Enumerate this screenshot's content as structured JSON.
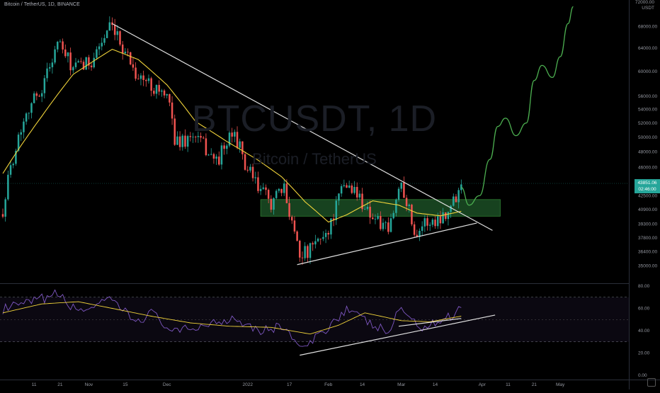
{
  "header": {
    "symbol_line": "Bitcoin / TetherUS, 1D, BINANCE"
  },
  "watermark": {
    "ticker": "BTCUSDT, 1D",
    "name": "Bitcoin / TetherUS"
  },
  "price_axis": {
    "top_label": "72000.00",
    "unit": "USDT"
  },
  "current_price": {
    "price": "43851.06",
    "countdown": "02:46:00"
  },
  "colors": {
    "up": "#26a69a",
    "down": "#ef5350",
    "ema": "#f0d33a",
    "trendline": "#e0e0e0",
    "zone_fill": "#1b4d24",
    "zone_border": "#2e7d32",
    "projection": "#4caf50",
    "rsi_line": "#7e57c2",
    "rsi_ma": "#f0d33a",
    "rsi_band": "#7e57c2"
  },
  "chart_data": [
    {
      "type": "candlestick",
      "title": "BTCUSDT, 1D",
      "series_name": "Bitcoin / TetherUS",
      "x_tick_labels": [
        "11",
        "21",
        "Nov",
        "15",
        "Dec",
        "2022",
        "17",
        "Feb",
        "14",
        "Mar",
        "14",
        "Apr",
        "11",
        "21",
        "May"
      ],
      "y_tick_labels": [
        "68000.00",
        "64000.00",
        "60000.00",
        "56000.00",
        "54000.00",
        "52000.00",
        "50000.00",
        "48000.00",
        "46000.00",
        "42500.00",
        "40900.00",
        "39300.00",
        "37800.00",
        "36400.00",
        "35000.00"
      ],
      "y_scale": "log",
      "ylim": [
        33600,
        72000
      ],
      "x_range_dates": [
        "2021-09-29",
        "2022-05-03"
      ],
      "last_close": 43851.06,
      "anchor_closes": [
        {
          "date": "2021-09-29",
          "close": 41000
        },
        {
          "date": "2021-10-03",
          "close": 47500
        },
        {
          "date": "2021-10-08",
          "close": 53900
        },
        {
          "date": "2021-10-14",
          "close": 57300
        },
        {
          "date": "2021-10-20",
          "close": 65000
        },
        {
          "date": "2021-10-26",
          "close": 60400
        },
        {
          "date": "2021-11-01",
          "close": 61300
        },
        {
          "date": "2021-11-09",
          "close": 67500
        },
        {
          "date": "2021-11-15",
          "close": 63700
        },
        {
          "date": "2021-11-20",
          "close": 59000
        },
        {
          "date": "2021-11-28",
          "close": 57200
        },
        {
          "date": "2021-12-03",
          "close": 53800
        },
        {
          "date": "2021-12-04",
          "close": 49200
        },
        {
          "date": "2021-12-12",
          "close": 50100
        },
        {
          "date": "2021-12-20",
          "close": 46700
        },
        {
          "date": "2021-12-27",
          "close": 50700
        },
        {
          "date": "2021-12-31",
          "close": 46200
        },
        {
          "date": "2022-01-05",
          "close": 43400
        },
        {
          "date": "2022-01-10",
          "close": 41800
        },
        {
          "date": "2022-01-15",
          "close": 43100
        },
        {
          "date": "2022-01-21",
          "close": 36400
        },
        {
          "date": "2022-01-24",
          "close": 36200
        },
        {
          "date": "2022-02-01",
          "close": 38700
        },
        {
          "date": "2022-02-07",
          "close": 43800
        },
        {
          "date": "2022-02-10",
          "close": 43500
        },
        {
          "date": "2022-02-17",
          "close": 40500
        },
        {
          "date": "2022-02-24",
          "close": 38300
        },
        {
          "date": "2022-03-01",
          "close": 44400
        },
        {
          "date": "2022-03-06",
          "close": 38400
        },
        {
          "date": "2022-03-10",
          "close": 39400
        },
        {
          "date": "2022-03-14",
          "close": 39600
        },
        {
          "date": "2022-03-20",
          "close": 41200
        },
        {
          "date": "2022-03-24",
          "close": 43851.06
        }
      ],
      "ema_anchors": [
        {
          "date": "2021-09-29",
          "value": 45200
        },
        {
          "date": "2021-10-14",
          "value": 53000
        },
        {
          "date": "2021-10-26",
          "value": 59500
        },
        {
          "date": "2021-11-10",
          "value": 63800
        },
        {
          "date": "2021-11-20",
          "value": 62000
        },
        {
          "date": "2021-12-01",
          "value": 57800
        },
        {
          "date": "2021-12-12",
          "value": 52200
        },
        {
          "date": "2021-12-24",
          "value": 49400
        },
        {
          "date": "2022-01-05",
          "value": 46900
        },
        {
          "date": "2022-01-14",
          "value": 44800
        },
        {
          "date": "2022-01-23",
          "value": 41800
        },
        {
          "date": "2022-02-01",
          "value": 39500
        },
        {
          "date": "2022-02-08",
          "value": 40300
        },
        {
          "date": "2022-02-18",
          "value": 41900
        },
        {
          "date": "2022-02-28",
          "value": 41400
        },
        {
          "date": "2022-03-07",
          "value": 40500
        },
        {
          "date": "2022-03-16",
          "value": 40200
        },
        {
          "date": "2022-03-24",
          "value": 40700
        }
      ],
      "descending_trendline": [
        {
          "date": "2021-11-10",
          "value": 68500
        },
        {
          "date": "2022-04-05",
          "value": 38600
        }
      ],
      "ascending_trendline": [
        {
          "date": "2022-01-20",
          "value": 35100
        },
        {
          "date": "2022-03-30",
          "value": 39400
        }
      ],
      "support_zone": {
        "from_date": "2022-01-06",
        "to_date": "2022-04-08",
        "low": 40150,
        "high": 42050
      },
      "projection_path": [
        {
          "date": "2022-03-24",
          "value": 43500
        },
        {
          "date": "2022-03-27",
          "value": 41400
        },
        {
          "date": "2022-03-31",
          "value": 42500
        },
        {
          "date": "2022-04-04",
          "value": 47000
        },
        {
          "date": "2022-04-07",
          "value": 51500
        },
        {
          "date": "2022-04-10",
          "value": 52700
        },
        {
          "date": "2022-04-14",
          "value": 50200
        },
        {
          "date": "2022-04-18",
          "value": 52000
        },
        {
          "date": "2022-04-21",
          "value": 58500
        },
        {
          "date": "2022-04-24",
          "value": 61000
        },
        {
          "date": "2022-04-28",
          "value": 59000
        },
        {
          "date": "2022-05-01",
          "value": 62500
        },
        {
          "date": "2022-05-04",
          "value": 68500
        },
        {
          "date": "2022-05-06",
          "value": 71800
        }
      ]
    },
    {
      "type": "line",
      "title": "",
      "series": [
        {
          "name": "",
          "kind": "rsi"
        },
        {
          "name": "",
          "kind": "rsi_ma"
        }
      ],
      "y_tick_labels": [
        "80.00",
        "60.00",
        "40.00",
        "20.00",
        "0.00"
      ],
      "ylim": [
        0,
        80
      ],
      "overbought_oversold_band": [
        30,
        70
      ],
      "rsi_anchors": [
        {
          "date": "2021-09-29",
          "value": 59
        },
        {
          "date": "2021-10-08",
          "value": 64
        },
        {
          "date": "2021-10-20",
          "value": 73
        },
        {
          "date": "2021-10-27",
          "value": 58
        },
        {
          "date": "2021-11-05",
          "value": 63
        },
        {
          "date": "2021-11-10",
          "value": 67
        },
        {
          "date": "2021-11-19",
          "value": 48
        },
        {
          "date": "2021-11-25",
          "value": 56
        },
        {
          "date": "2021-12-04",
          "value": 38
        },
        {
          "date": "2021-12-15",
          "value": 45
        },
        {
          "date": "2021-12-27",
          "value": 52
        },
        {
          "date": "2022-01-06",
          "value": 40
        },
        {
          "date": "2022-01-15",
          "value": 44
        },
        {
          "date": "2022-01-22",
          "value": 22
        },
        {
          "date": "2022-01-28",
          "value": 35
        },
        {
          "date": "2022-02-08",
          "value": 60
        },
        {
          "date": "2022-02-14",
          "value": 50
        },
        {
          "date": "2022-02-24",
          "value": 38
        },
        {
          "date": "2022-03-01",
          "value": 62
        },
        {
          "date": "2022-03-07",
          "value": 43
        },
        {
          "date": "2022-03-13",
          "value": 46
        },
        {
          "date": "2022-03-19",
          "value": 52
        },
        {
          "date": "2022-03-24",
          "value": 61
        }
      ],
      "rsi_ma_anchors": [
        {
          "date": "2021-09-29",
          "value": 56
        },
        {
          "date": "2021-10-14",
          "value": 64
        },
        {
          "date": "2021-10-28",
          "value": 66
        },
        {
          "date": "2021-11-10",
          "value": 60
        },
        {
          "date": "2021-11-25",
          "value": 53
        },
        {
          "date": "2021-12-10",
          "value": 47
        },
        {
          "date": "2021-12-25",
          "value": 44
        },
        {
          "date": "2022-01-10",
          "value": 43
        },
        {
          "date": "2022-01-25",
          "value": 37
        },
        {
          "date": "2022-02-05",
          "value": 45
        },
        {
          "date": "2022-02-15",
          "value": 56
        },
        {
          "date": "2022-03-01",
          "value": 49
        },
        {
          "date": "2022-03-12",
          "value": 48
        },
        {
          "date": "2022-03-24",
          "value": 53
        }
      ],
      "rsi_trendline": [
        {
          "date": "2022-01-21",
          "value": 18
        },
        {
          "date": "2022-04-06",
          "value": 54
        }
      ],
      "rsi_ma_trendline": [
        {
          "date": "2022-02-28",
          "value": 44
        },
        {
          "date": "2022-03-24",
          "value": 51
        }
      ]
    }
  ]
}
